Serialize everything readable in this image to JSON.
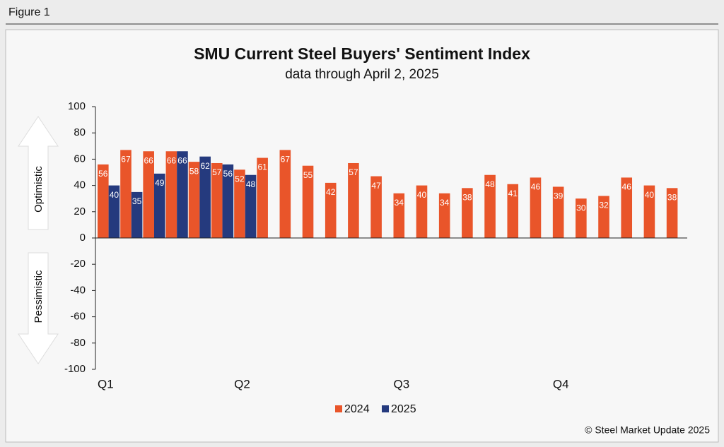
{
  "figure_label": "Figure 1",
  "footer": "© Steel Market Update 2025",
  "chart_data": {
    "type": "bar",
    "title": "SMU Current Steel Buyers' Sentiment Index",
    "subtitle": "data through April 2, 2025",
    "upper_label": "Optimistic",
    "lower_label": "Pessimistic",
    "categories": [
      "Q1",
      null,
      null,
      null,
      null,
      null,
      "Q2",
      null,
      null,
      null,
      null,
      null,
      null,
      "Q3",
      null,
      null,
      null,
      null,
      null,
      null,
      "Q4",
      null,
      null,
      null,
      null,
      null
    ],
    "series": [
      {
        "name": "2024",
        "color": "#e9552a",
        "values": [
          56,
          67,
          66,
          66,
          58,
          57,
          52,
          61,
          67,
          55,
          42,
          57,
          47,
          34,
          40,
          34,
          38,
          48,
          41,
          46,
          39,
          30,
          32,
          46,
          40,
          38
        ]
      },
      {
        "name": "2025",
        "color": "#253a7e",
        "values": [
          40,
          35,
          49,
          66,
          62,
          56,
          48,
          null,
          null,
          null,
          null,
          null,
          null,
          null,
          null,
          null,
          null,
          null,
          null,
          null,
          null,
          null,
          null,
          null,
          null,
          null
        ]
      }
    ],
    "ylim": [
      -100,
      100
    ],
    "yticks": [
      -100,
      -80,
      -60,
      -40,
      -20,
      0,
      20,
      40,
      60,
      80,
      100
    ],
    "legend": "bottom"
  }
}
